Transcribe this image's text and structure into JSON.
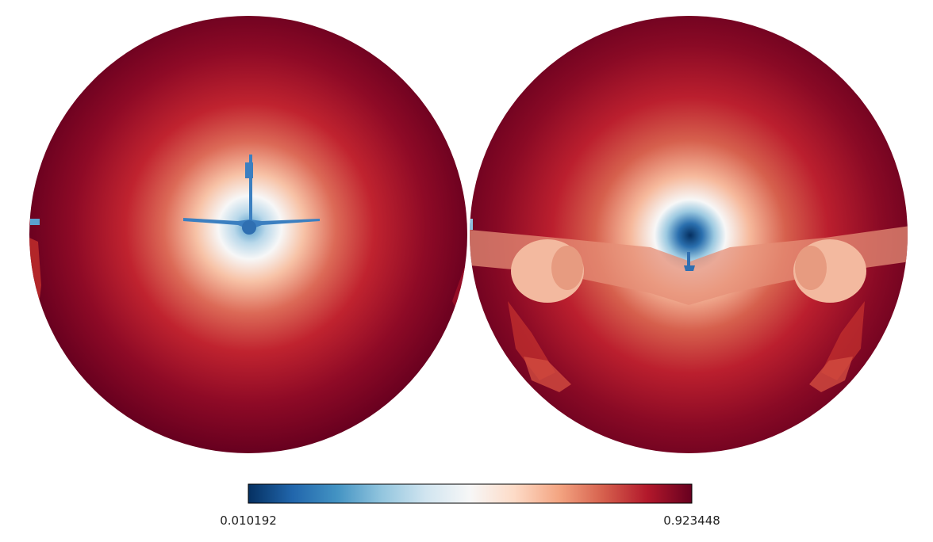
{
  "chart_data": {
    "type": "heatmap",
    "projection": "orthographic",
    "hemispheres": 2,
    "title": "",
    "colormap": {
      "name": "RdBu_r",
      "stops": [
        "#053061",
        "#2166ac",
        "#4393c3",
        "#92c5de",
        "#d1e5f0",
        "#f7f7f7",
        "#fddbc7",
        "#f4a582",
        "#d6604d",
        "#b2182b",
        "#67001f"
      ]
    },
    "colorbar": {
      "min": 0.010192,
      "max": 0.923448,
      "min_label": "0.010192",
      "max_label": "0.923448",
      "orientation": "horizontal",
      "placement": "bottom"
    }
  }
}
